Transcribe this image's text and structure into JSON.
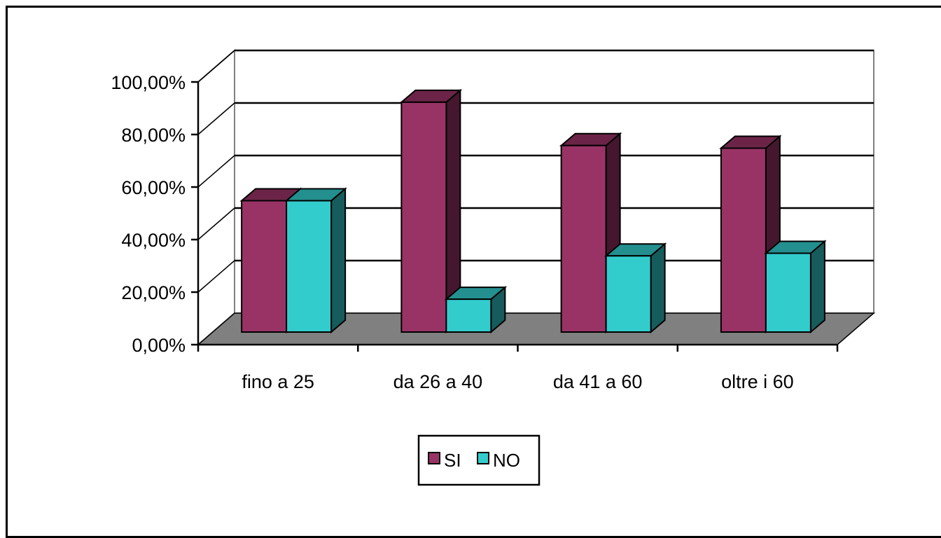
{
  "chart_data": {
    "type": "bar",
    "style": "3d-clustered-column",
    "categories": [
      "fino a 25",
      "da 26 a 40",
      "da 41 a 60",
      "oltre i 60"
    ],
    "series": [
      {
        "name": "SI",
        "values": [
          0.5,
          0.875,
          0.71,
          0.7
        ],
        "color": "#993366"
      },
      {
        "name": "NO",
        "values": [
          0.5,
          0.125,
          0.29,
          0.3
        ],
        "color": "#33CCCC"
      }
    ],
    "ylim": [
      0,
      1.0
    ],
    "yticks": [
      0,
      0.2,
      0.4,
      0.6,
      0.8,
      1.0
    ],
    "ytick_labels": [
      "0,00%",
      "20,00%",
      "40,00%",
      "60,00%",
      "80,00%",
      "100,00%"
    ],
    "title": "",
    "xlabel": "",
    "ylabel": "",
    "grid": true,
    "legend_position": "bottom",
    "floor_color": "#808080",
    "wall_color": "#FFFFFF"
  }
}
